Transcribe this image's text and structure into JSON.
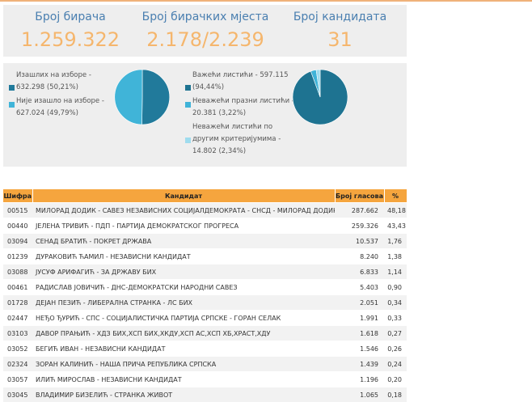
{
  "stats": {
    "voters_title": "Број бирача",
    "voters_value": "1.259.322",
    "stations_title": "Број бирачких мјеста",
    "stations_value": "2.178/2.239",
    "candidates_title": "Број кандидата",
    "candidates_value": "31"
  },
  "turnout": {
    "voted_label": "Изашлих на изборе -",
    "voted_value": "632.298 (50,21%)",
    "not_voted_label": "Није изашло на изборе -",
    "not_voted_value": "627.024 (49,79%)",
    "voted_percent": 50.21,
    "not_voted_percent": 49.79,
    "colors": {
      "voted": "#217a9b",
      "not_voted": "#40b4d8"
    }
  },
  "ballots": {
    "valid_label": "Важећи листићи -",
    "valid_value": "597.115",
    "valid_pct": "(94,44%)",
    "blank_label": "Неважећи празни листићи -",
    "blank_value": "20.381 (3,22%)",
    "other_label_1": "Неважећи листићи по",
    "other_label_2": "другим критеријумима -",
    "other_value": "14.802 (2,34%)",
    "valid_percent": 94.44,
    "blank_percent": 3.22,
    "other_percent": 2.34,
    "colors": {
      "valid": "#1e7391",
      "blank": "#3fb3d8",
      "other": "#9fdcee"
    }
  },
  "table": {
    "headers": {
      "code": "Шифра",
      "candidate": "Кандидат",
      "votes": "Број гласова",
      "pct": "%"
    },
    "rows": [
      {
        "code": "00515",
        "candidate": "МИЛОРАД ДОДИК - САВЕЗ НЕЗАВИСНИХ СОЦИЈАЛДЕМОКРАТА - СНСД - МИЛОРАД ДОДИК",
        "votes": "287.662",
        "pct": "48,18"
      },
      {
        "code": "00440",
        "candidate": "ЈЕЛЕНА ТРИВИЋ - ПДП - ПАРТИЈА ДЕМОКРАТСКОГ ПРОГРЕСА",
        "votes": "259.326",
        "pct": "43,43"
      },
      {
        "code": "03094",
        "candidate": "СЕНАД БРАТИЋ - ПОКРЕТ ДРЖАВА",
        "votes": "10.537",
        "pct": "1,76"
      },
      {
        "code": "01239",
        "candidate": "ДУРАКОВИЋ ЋАМИЛ - НЕЗАВИСНИ КАНДИДАТ",
        "votes": "8.240",
        "pct": "1,38"
      },
      {
        "code": "03088",
        "candidate": "ЈУСУФ АРИФАГИЋ - ЗА ДРЖАВУ БИХ",
        "votes": "6.833",
        "pct": "1,14"
      },
      {
        "code": "00461",
        "candidate": "РАДИСЛАВ ЈОВИЧИЋ - ДНС-ДЕМОКРАТСКИ НАРОДНИ САВЕЗ",
        "votes": "5.403",
        "pct": "0,90"
      },
      {
        "code": "01728",
        "candidate": "ДЕЈАН ПЕЗИЋ - ЛИБЕРАЛНА СТРАНКА - ЛС БИХ",
        "votes": "2.051",
        "pct": "0,34"
      },
      {
        "code": "02447",
        "candidate": "НЕЂО ЂУРИЋ - СПС - СОЦИЈАЛИСТИЧКА ПАРТИЈА СРПСКЕ - ГОРАН СЕЛАК",
        "votes": "1.991",
        "pct": "0,33"
      },
      {
        "code": "03103",
        "candidate": "ДАВОР ПРАЊИЋ - ХДЗ БИХ,ХСП БИХ,ХКДУ,ХСП АС,ХСП ХБ,ХРАСТ,ХДУ",
        "votes": "1.618",
        "pct": "0,27"
      },
      {
        "code": "03052",
        "candidate": "БЕГИЋ ИВАН - НЕЗАВИСНИ КАНДИДАТ",
        "votes": "1.546",
        "pct": "0,26"
      },
      {
        "code": "02324",
        "candidate": "ЗОРАН КАЛИНИЋ - НАША ПРИЧА РЕПУБЛИКА СРПСКА",
        "votes": "1.439",
        "pct": "0,24"
      },
      {
        "code": "03057",
        "candidate": "ИЛИЋ МИРОСЛАВ - НЕЗАВИСНИ КАНДИДАТ",
        "votes": "1.196",
        "pct": "0,20"
      },
      {
        "code": "03045",
        "candidate": "ВЛАДИМИР БИЗЕЛИЋ - СТРАНКА ЖИВОТ",
        "votes": "1.065",
        "pct": "0,18"
      }
    ]
  }
}
